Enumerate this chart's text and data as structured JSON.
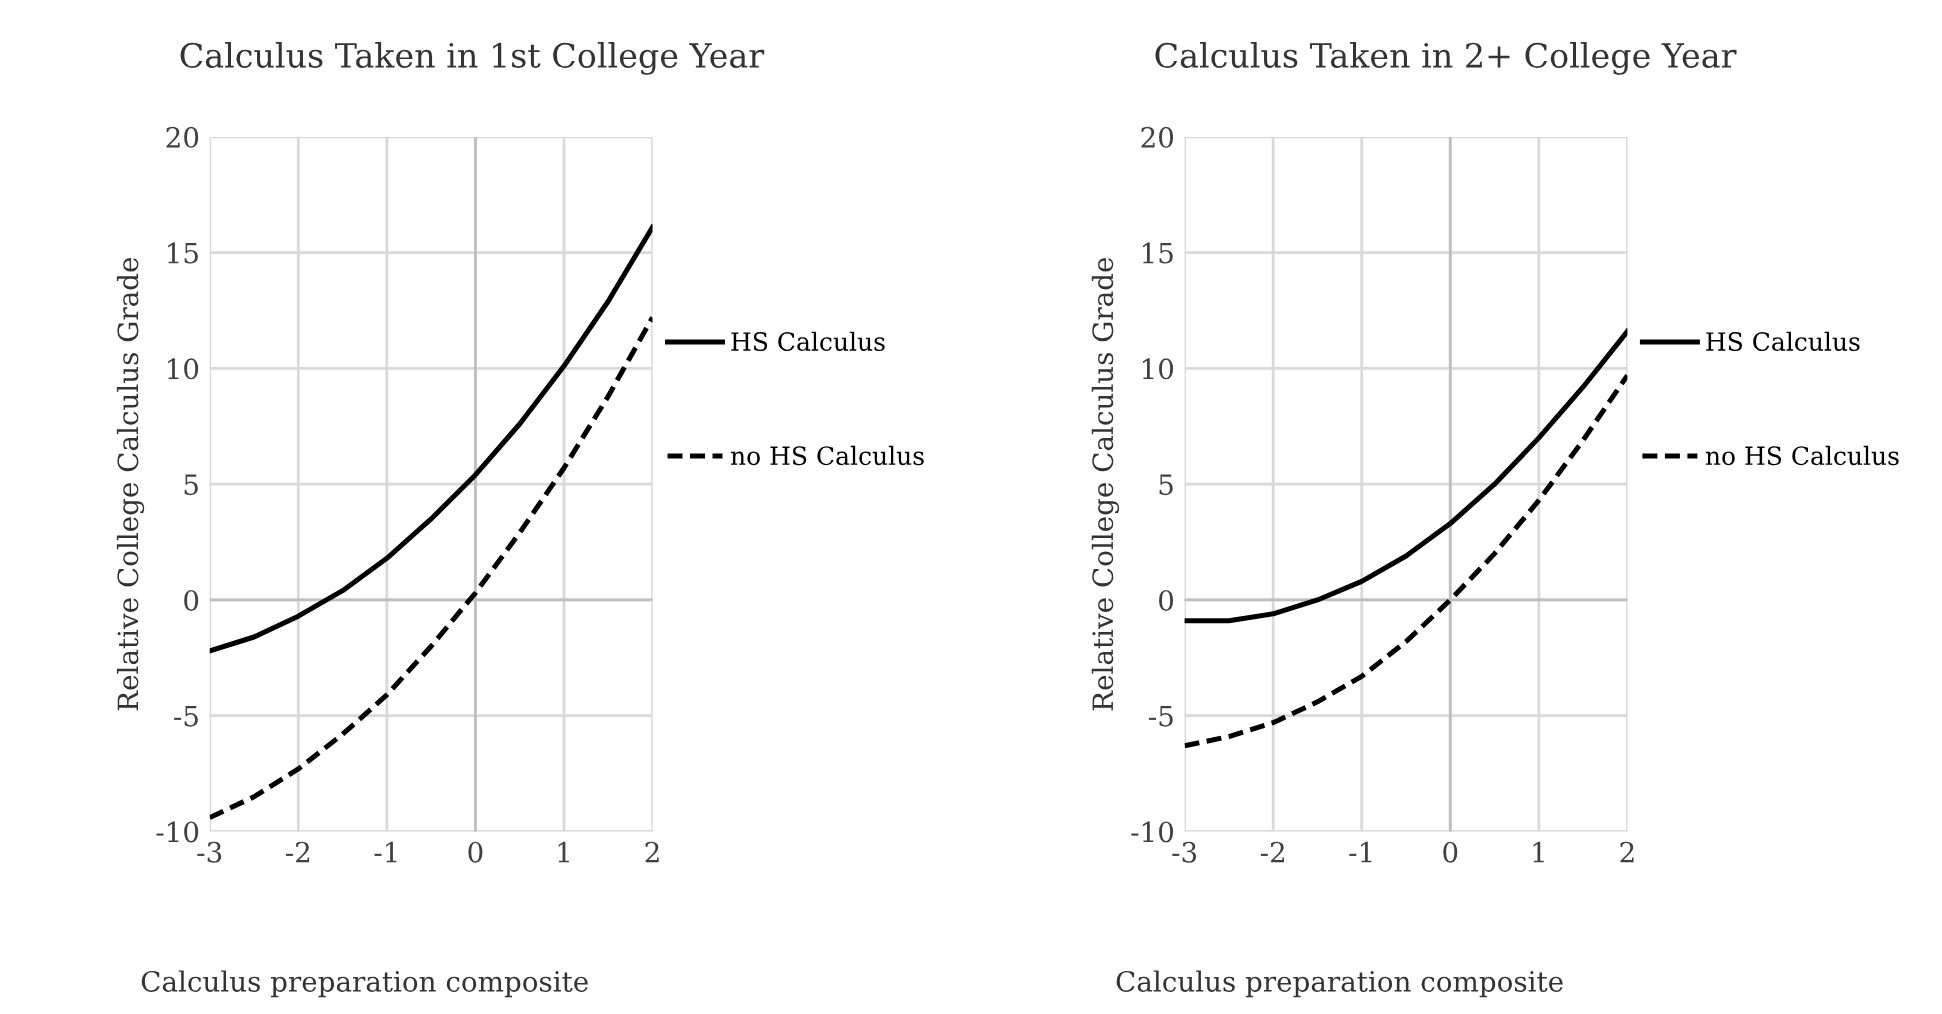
{
  "chart_data": [
    {
      "type": "line",
      "title": "Calculus Taken in 1st College Year",
      "xlabel": "Calculus preparation composite",
      "ylabel": "Relative College Calculus Grade",
      "x": [
        -3,
        -2.5,
        -2,
        -1.5,
        -1,
        -0.5,
        0,
        0.5,
        1,
        1.5,
        2
      ],
      "xlim": [
        -3,
        2
      ],
      "xticks": [
        -3,
        -2,
        -1,
        0,
        1,
        2
      ],
      "ylim": [
        -10,
        20
      ],
      "yticks": [
        -10,
        -5,
        0,
        5,
        10,
        15,
        20
      ],
      "grid": true,
      "legend": "right",
      "marker": "none",
      "series": [
        {
          "name": "HS Calculus",
          "color": "#000000",
          "line_style": "solid",
          "values": [
            -2.2,
            -1.6,
            -0.7,
            0.4,
            1.8,
            3.5,
            5.4,
            7.6,
            10.1,
            12.9,
            16.1
          ]
        },
        {
          "name": "no HS Calculus",
          "color": "#000000",
          "line_style": "dashed",
          "values": [
            -9.4,
            -8.5,
            -7.3,
            -5.8,
            -4.1,
            -2.0,
            0.3,
            2.9,
            5.7,
            8.8,
            12.2
          ]
        }
      ]
    },
    {
      "type": "line",
      "title": "Calculus Taken in 2+ College Year",
      "xlabel": "Calculus preparation composite",
      "ylabel": "Relative College Calculus Grade",
      "x": [
        -3,
        -2.5,
        -2,
        -1.5,
        -1,
        -0.5,
        0,
        0.5,
        1,
        1.5,
        2
      ],
      "xlim": [
        -3,
        2
      ],
      "xticks": [
        -3,
        -2,
        -1,
        0,
        1,
        2
      ],
      "ylim": [
        -10,
        20
      ],
      "yticks": [
        -10,
        -5,
        0,
        5,
        10,
        15,
        20
      ],
      "grid": true,
      "legend": "right",
      "marker": "none",
      "series": [
        {
          "name": "HS Calculus",
          "color": "#000000",
          "line_style": "solid",
          "values": [
            -0.9,
            -0.9,
            -0.6,
            0.0,
            0.8,
            1.9,
            3.3,
            5.0,
            7.0,
            9.2,
            11.6
          ]
        },
        {
          "name": "no HS Calculus",
          "color": "#000000",
          "line_style": "dashed",
          "values": [
            -6.3,
            -5.9,
            -5.3,
            -4.4,
            -3.3,
            -1.8,
            0.0,
            2.0,
            4.3,
            6.9,
            9.7
          ]
        }
      ]
    }
  ]
}
